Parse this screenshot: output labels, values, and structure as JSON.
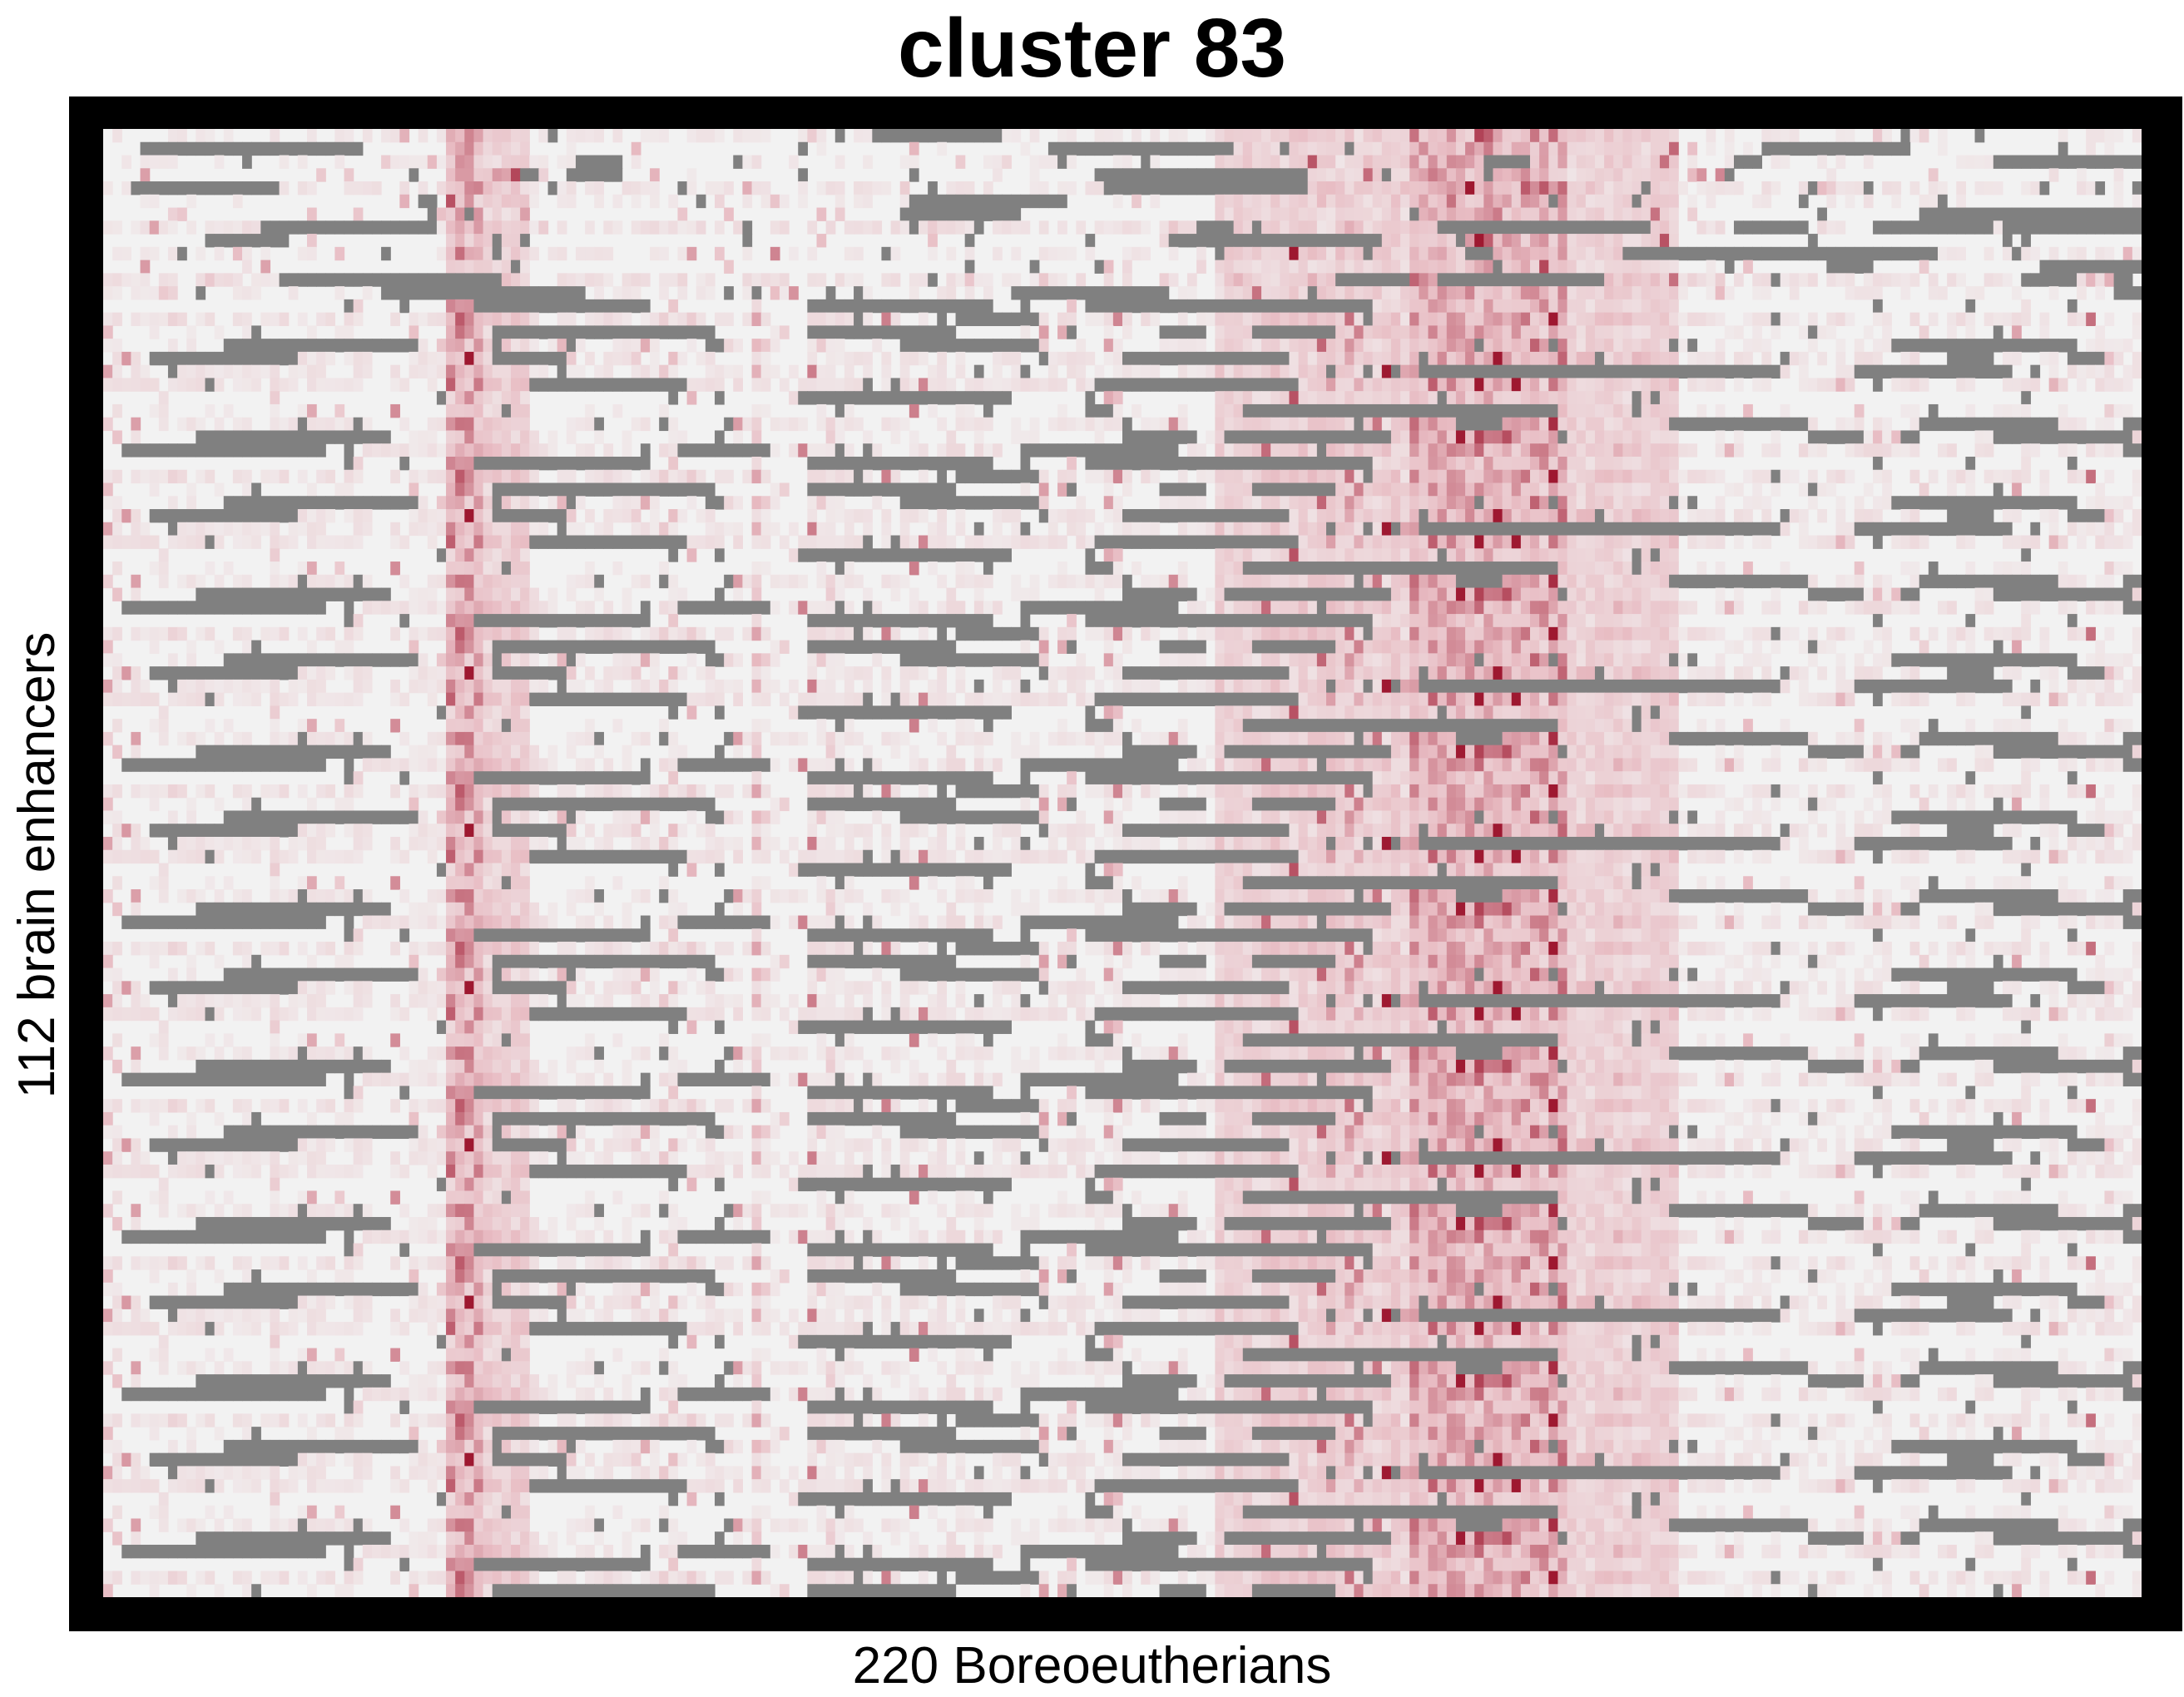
{
  "chart_data": {
    "type": "heatmap",
    "title": "cluster 83",
    "xlabel": "220 Boreoeutherians",
    "ylabel": "112 brain enhancers",
    "n_cols": 220,
    "n_rows": 112,
    "legend": "none",
    "grid": false,
    "colors": {
      "low": "#f2f2f2",
      "mid": "#e8bcc3",
      "high": "#9e1830",
      "missing": "#808080",
      "frame": "#000000"
    },
    "column_bands": [
      {
        "cols": [
          37,
          41
        ],
        "level": "high",
        "note": "strong red band"
      },
      {
        "cols": [
          41,
          46
        ],
        "level": "mid"
      },
      {
        "cols": [
          141,
          158
        ],
        "level": "high",
        "note": "strongest red block"
      },
      {
        "cols": [
          120,
          141
        ],
        "level": "mid"
      },
      {
        "cols": [
          158,
          170
        ],
        "level": "mid"
      }
    ],
    "structure": "rows of low (near-white) values with scattered red cells and horizontal runs of missing (grey) cells; red concentrated in two vertical bands"
  }
}
